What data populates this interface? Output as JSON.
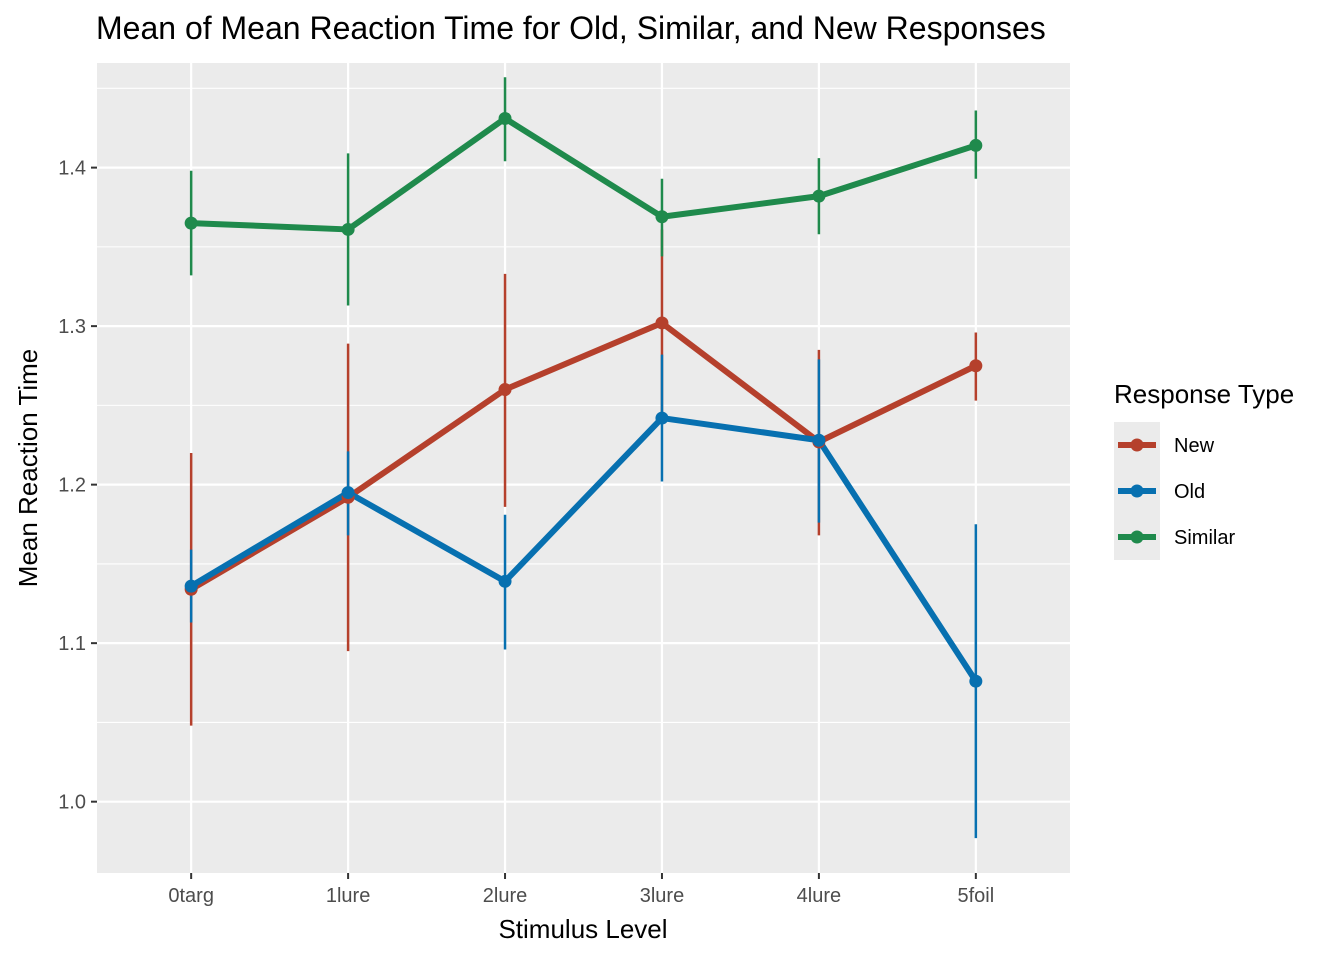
{
  "chart_data": {
    "type": "line",
    "title": "Mean of Mean Reaction Time for Old, Similar, and New Responses",
    "xlabel": "Stimulus Level",
    "ylabel": "Mean Reaction Time",
    "categories": [
      "0targ",
      "1lure",
      "2lure",
      "3lure",
      "4lure",
      "5foil"
    ],
    "ylim": [
      0.955,
      1.466
    ],
    "yticks": [
      1.0,
      1.1,
      1.2,
      1.3,
      1.4
    ],
    "ytick_labels": [
      "1.0",
      "1.1",
      "1.2",
      "1.3",
      "1.4"
    ],
    "grid": true,
    "error_bars": true,
    "legend": {
      "title": "Response Type",
      "position": "right"
    },
    "series": [
      {
        "name": "New",
        "color": "#b5402c",
        "values": [
          1.134,
          1.192,
          1.26,
          1.302,
          1.227,
          1.275
        ],
        "lower": [
          1.048,
          1.095,
          1.186,
          1.243,
          1.168,
          1.253
        ],
        "upper": [
          1.22,
          1.289,
          1.333,
          1.361,
          1.285,
          1.296
        ]
      },
      {
        "name": "Old",
        "color": "#0770b0",
        "values": [
          1.136,
          1.195,
          1.139,
          1.242,
          1.228,
          1.076
        ],
        "lower": [
          1.113,
          1.168,
          1.096,
          1.202,
          1.176,
          0.977
        ],
        "upper": [
          1.159,
          1.221,
          1.181,
          1.282,
          1.279,
          1.175
        ]
      },
      {
        "name": "Similar",
        "color": "#1f8a4c",
        "values": [
          1.365,
          1.361,
          1.431,
          1.369,
          1.382,
          1.414
        ],
        "lower": [
          1.332,
          1.313,
          1.404,
          1.344,
          1.358,
          1.393
        ],
        "upper": [
          1.398,
          1.409,
          1.457,
          1.393,
          1.406,
          1.436
        ]
      }
    ]
  }
}
